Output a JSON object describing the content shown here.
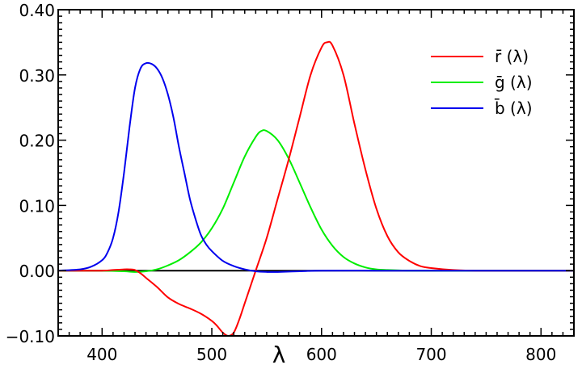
{
  "chart_data": {
    "type": "line",
    "title": "",
    "xlabel": "λ",
    "ylabel": "",
    "xlim": [
      360,
      830
    ],
    "ylim": [
      -0.1,
      0.4
    ],
    "grid": false,
    "legend_position": "top-right",
    "x_ticks": [
      400,
      500,
      600,
      700,
      800
    ],
    "x_tick_labels": [
      "400",
      "500",
      "600",
      "700",
      "800"
    ],
    "y_ticks": [
      -0.1,
      0.0,
      0.1,
      0.2,
      0.3,
      0.4
    ],
    "y_tick_labels": [
      "−0.10",
      "0.00",
      "0.10",
      "0.20",
      "0.30",
      "0.40"
    ],
    "zero_line": true,
    "series": [
      {
        "name": "r̄ (λ)",
        "color": "#ff0000",
        "x": [
          360,
          380,
          400,
          410,
          420,
          425,
          430,
          435,
          440,
          450,
          460,
          470,
          480,
          490,
          500,
          505,
          510,
          515,
          520,
          525,
          530,
          540,
          550,
          560,
          570,
          580,
          590,
          600,
          605,
          610,
          620,
          630,
          640,
          650,
          660,
          670,
          680,
          690,
          700,
          720,
          740,
          760,
          780,
          800,
          830
        ],
        "y": [
          0.0,
          0.0,
          0.0,
          0.001,
          0.002,
          0.002,
          0.001,
          -0.004,
          -0.011,
          -0.025,
          -0.041,
          -0.051,
          -0.058,
          -0.066,
          -0.077,
          -0.085,
          -0.095,
          -0.1,
          -0.095,
          -0.075,
          -0.05,
          0.0,
          0.05,
          0.11,
          0.17,
          0.235,
          0.3,
          0.342,
          0.35,
          0.345,
          0.3,
          0.225,
          0.155,
          0.095,
          0.053,
          0.028,
          0.015,
          0.007,
          0.004,
          0.001,
          0.0,
          0.0,
          0.0,
          0.0,
          0.0
        ]
      },
      {
        "name": "ḡ (λ)",
        "color": "#00ee00",
        "x": [
          360,
          400,
          420,
          430,
          440,
          450,
          460,
          470,
          480,
          490,
          500,
          510,
          520,
          530,
          540,
          545,
          550,
          560,
          570,
          580,
          590,
          600,
          610,
          620,
          630,
          640,
          650,
          660,
          680,
          700,
          750,
          830
        ],
        "y": [
          0.0,
          0.0,
          -0.001,
          -0.002,
          -0.001,
          0.002,
          0.008,
          0.016,
          0.028,
          0.043,
          0.065,
          0.095,
          0.135,
          0.175,
          0.205,
          0.214,
          0.214,
          0.2,
          0.172,
          0.135,
          0.097,
          0.063,
          0.038,
          0.021,
          0.011,
          0.005,
          0.002,
          0.001,
          0.0,
          0.0,
          0.0,
          0.0
        ]
      },
      {
        "name": "b̄ (λ)",
        "color": "#0000ee",
        "x": [
          360,
          380,
          390,
          400,
          405,
          410,
          415,
          420,
          425,
          430,
          435,
          440,
          445,
          450,
          455,
          460,
          465,
          470,
          475,
          480,
          485,
          490,
          495,
          500,
          510,
          520,
          530,
          540,
          550,
          560,
          580,
          600,
          650,
          700,
          830
        ],
        "y": [
          0.0,
          0.002,
          0.006,
          0.016,
          0.028,
          0.05,
          0.09,
          0.15,
          0.22,
          0.28,
          0.31,
          0.318,
          0.317,
          0.31,
          0.295,
          0.27,
          0.235,
          0.19,
          0.15,
          0.11,
          0.08,
          0.055,
          0.04,
          0.03,
          0.015,
          0.007,
          0.002,
          -0.001,
          -0.002,
          -0.002,
          -0.001,
          0.0,
          0.0,
          0.0,
          0.0
        ]
      }
    ]
  }
}
